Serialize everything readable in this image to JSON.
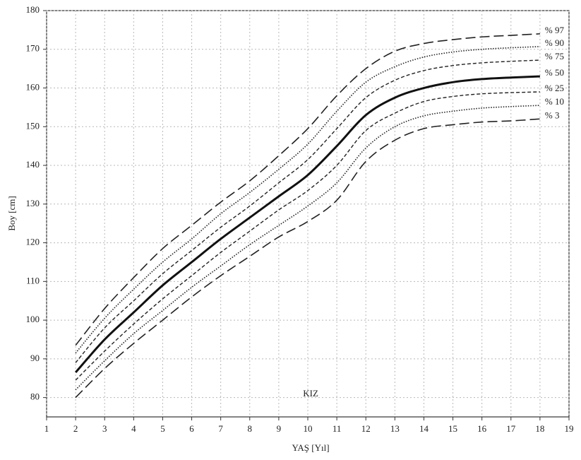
{
  "chart_data": {
    "type": "line",
    "x_label": "YAŞ [Yıl]",
    "y_label": "Boy [cm]",
    "annotation": "KIZ",
    "x": [
      2,
      3,
      4,
      5,
      6,
      7,
      8,
      9,
      10,
      11,
      12,
      13,
      14,
      15,
      16,
      17,
      18
    ],
    "xlim": [
      1,
      19
    ],
    "xticks": [
      1,
      2,
      3,
      4,
      5,
      6,
      7,
      8,
      9,
      10,
      11,
      12,
      13,
      14,
      15,
      16,
      17,
      18,
      19
    ],
    "ylim": [
      75,
      180
    ],
    "yticks": [
      80,
      90,
      100,
      110,
      120,
      130,
      140,
      150,
      160,
      170,
      180
    ],
    "grid": true,
    "series": [
      {
        "name": "% 97",
        "color": "#222222",
        "dash": "14 6",
        "width": 1.6,
        "values": [
          93.5,
          103,
          111,
          118.5,
          124.5,
          130.5,
          136,
          142.5,
          149.5,
          158,
          165,
          169.5,
          171.5,
          172.5,
          173.2,
          173.6,
          174
        ]
      },
      {
        "name": "% 90",
        "color": "#222222",
        "dash": "1.5 2",
        "width": 1.6,
        "values": [
          91.5,
          100.5,
          108,
          115,
          121,
          127.5,
          133,
          139,
          145.5,
          154,
          161.5,
          165.5,
          168,
          169.3,
          170,
          170.4,
          170.7
        ]
      },
      {
        "name": "% 75",
        "color": "#222222",
        "dash": "5 3",
        "width": 1.4,
        "values": [
          89,
          98,
          105,
          112,
          118,
          124,
          129.5,
          135.5,
          141.5,
          149.5,
          157.5,
          162,
          164.5,
          165.8,
          166.5,
          166.9,
          167.2
        ]
      },
      {
        "name": "% 50",
        "color": "#111111",
        "dash": "none",
        "width": 3,
        "values": [
          86.5,
          95,
          102,
          109,
          115,
          121,
          126.5,
          132,
          137.5,
          145,
          153,
          157.5,
          160,
          161.5,
          162.3,
          162.7,
          163
        ]
      },
      {
        "name": "% 25",
        "color": "#222222",
        "dash": "5 3",
        "width": 1.4,
        "values": [
          84.5,
          92,
          99,
          105.5,
          111.5,
          117.5,
          123,
          128.5,
          133.5,
          140,
          149,
          153.5,
          156.5,
          157.8,
          158.5,
          158.8,
          159
        ]
      },
      {
        "name": "% 10",
        "color": "#222222",
        "dash": "1.5 2",
        "width": 1.6,
        "values": [
          82,
          89.5,
          96.5,
          102.5,
          108.5,
          114,
          119.5,
          124.5,
          129.5,
          135.5,
          144.5,
          150,
          152.8,
          154,
          154.8,
          155.2,
          155.5
        ]
      },
      {
        "name": "% 3",
        "color": "#222222",
        "dash": "14 6",
        "width": 1.6,
        "values": [
          80,
          87.5,
          94,
          100,
          106,
          111.5,
          116.5,
          121.5,
          125.5,
          131,
          141,
          146.5,
          149.5,
          150.5,
          151.2,
          151.5,
          152
        ]
      }
    ]
  }
}
